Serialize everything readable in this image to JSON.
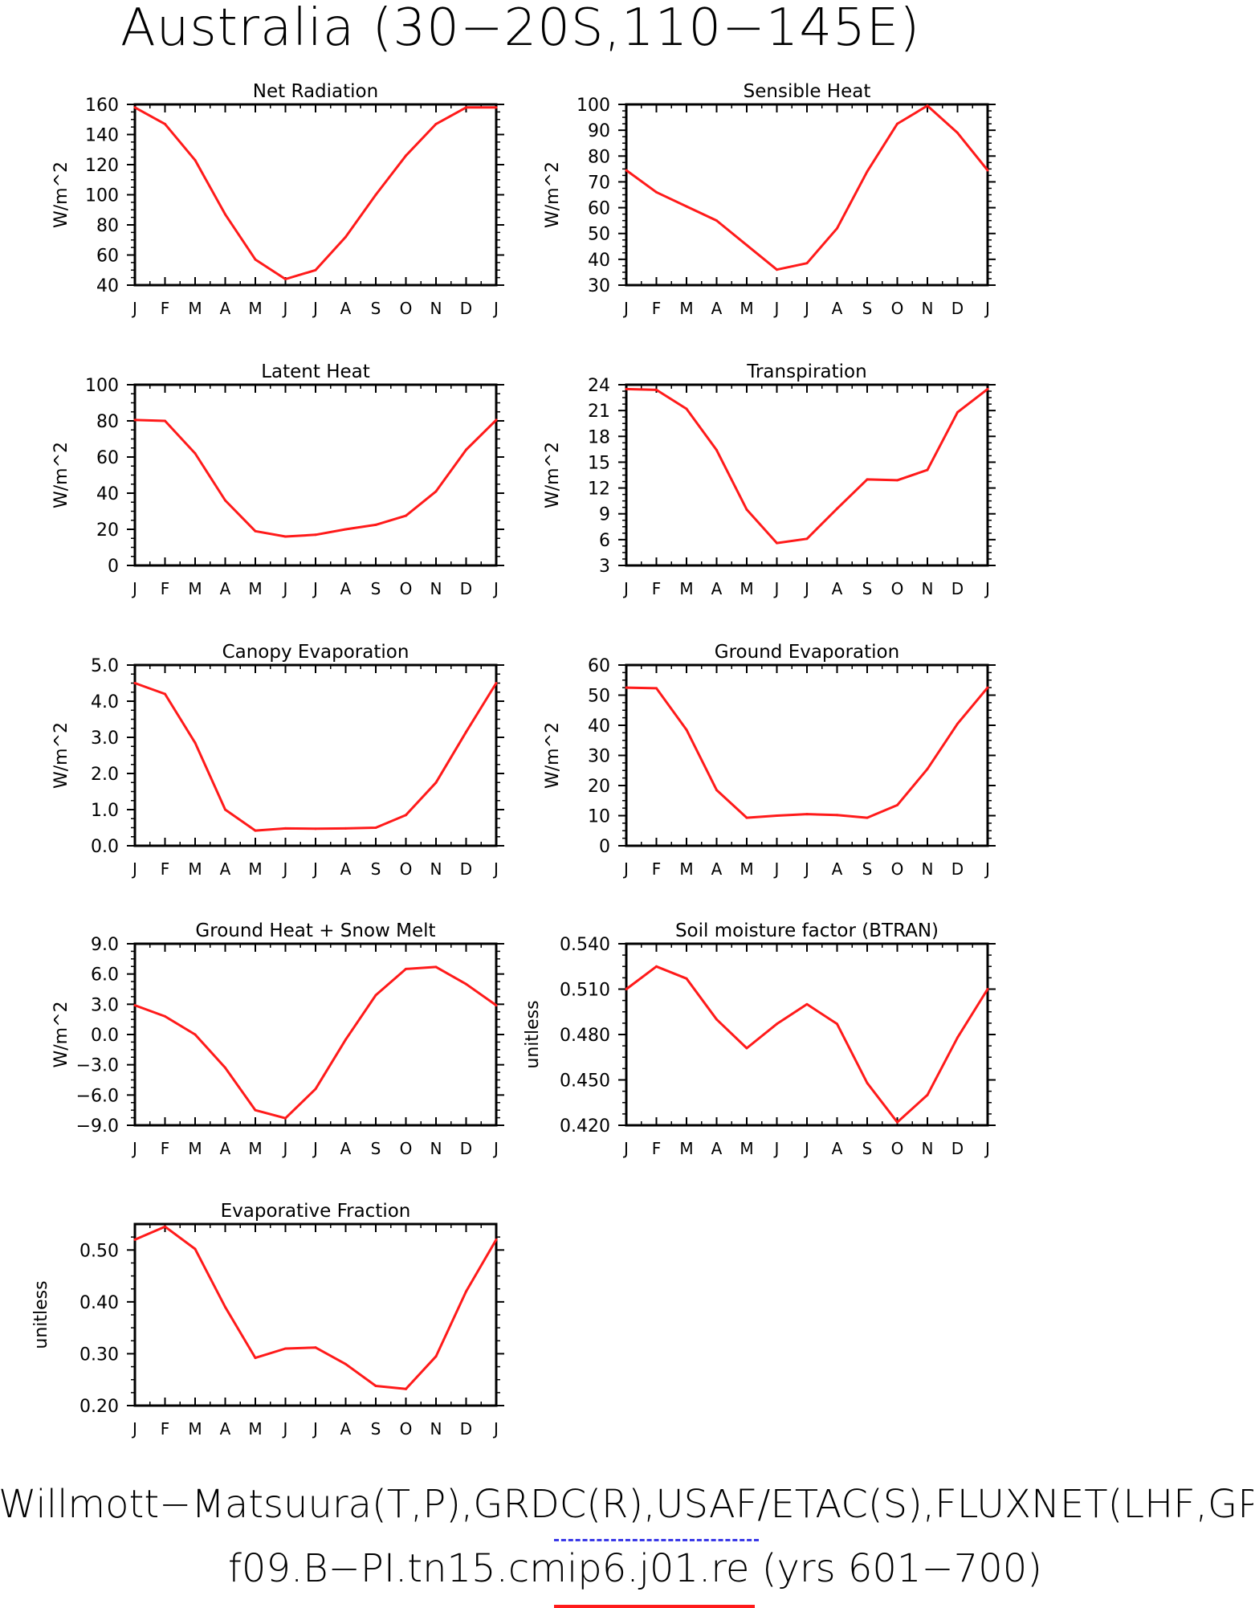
{
  "title": "Australia (30−20S,110−145E)",
  "footer": {
    "line1": "Willmott−Matsuura(T,P),GRDC(R),USAF/ETAC(S),FLUXNET(LHF,GPP)",
    "line2": "f09.B−PI.tn15.cmip6.j01.re (yrs 601−700)"
  },
  "colors": {
    "line": "#ff1a1a",
    "axis": "#000000",
    "dash": "#3a3ae8"
  },
  "chart_data": [
    {
      "type": "line",
      "title": "Net Radiation",
      "ylabel": "W/m^2",
      "categories": [
        "J",
        "F",
        "M",
        "A",
        "M",
        "J",
        "J",
        "A",
        "S",
        "O",
        "N",
        "D",
        "J"
      ],
      "ylim": [
        40,
        160
      ],
      "yticks": [
        "40",
        "60",
        "80",
        "100",
        "120",
        "140",
        "160"
      ],
      "values": [
        158,
        147,
        123,
        87,
        57,
        44,
        50,
        72,
        100,
        126,
        147,
        158,
        158
      ]
    },
    {
      "type": "line",
      "title": "Sensible Heat",
      "ylabel": "W/m^2",
      "categories": [
        "J",
        "F",
        "M",
        "A",
        "M",
        "J",
        "J",
        "A",
        "S",
        "O",
        "N",
        "D",
        "J"
      ],
      "ylim": [
        30,
        100
      ],
      "yticks": [
        "30",
        "40",
        "50",
        "60",
        "70",
        "80",
        "90",
        "100"
      ],
      "values": [
        74.5,
        66,
        60.5,
        55,
        45.5,
        36,
        38.5,
        52,
        74,
        92.5,
        99.5,
        89,
        74.5
      ]
    },
    {
      "type": "line",
      "title": "Latent Heat",
      "ylabel": "W/m^2",
      "categories": [
        "J",
        "F",
        "M",
        "A",
        "M",
        "J",
        "J",
        "A",
        "S",
        "O",
        "N",
        "D",
        "J"
      ],
      "ylim": [
        0,
        100
      ],
      "yticks": [
        "0",
        "20",
        "40",
        "60",
        "80",
        "100"
      ],
      "values": [
        80.5,
        80,
        62,
        36,
        19,
        16,
        17,
        20,
        22.5,
        27.5,
        41,
        64,
        80.5
      ]
    },
    {
      "type": "line",
      "title": "Transpiration",
      "ylabel": "W/m^2",
      "categories": [
        "J",
        "F",
        "M",
        "A",
        "M",
        "J",
        "J",
        "A",
        "S",
        "O",
        "N",
        "D",
        "J"
      ],
      "ylim": [
        3,
        24
      ],
      "yticks": [
        "3",
        "6",
        "9",
        "12",
        "15",
        "18",
        "21",
        "24"
      ],
      "values": [
        23.5,
        23.4,
        21.2,
        16.4,
        9.5,
        5.6,
        6.1,
        9.6,
        13,
        12.9,
        14.1,
        20.8,
        23.5
      ]
    },
    {
      "type": "line",
      "title": "Canopy Evaporation",
      "ylabel": "W/m^2",
      "categories": [
        "J",
        "F",
        "M",
        "A",
        "M",
        "J",
        "J",
        "A",
        "S",
        "O",
        "N",
        "D",
        "J"
      ],
      "ylim": [
        0,
        5
      ],
      "yticks": [
        "0.0",
        "1.0",
        "2.0",
        "3.0",
        "4.0",
        "5.0"
      ],
      "values": [
        4.5,
        4.2,
        2.85,
        1.0,
        0.42,
        0.48,
        0.47,
        0.48,
        0.5,
        0.85,
        1.75,
        3.15,
        4.5
      ]
    },
    {
      "type": "line",
      "title": "Ground Evaporation",
      "ylabel": "W/m^2",
      "categories": [
        "J",
        "F",
        "M",
        "A",
        "M",
        "J",
        "J",
        "A",
        "S",
        "O",
        "N",
        "D",
        "J"
      ],
      "ylim": [
        0,
        60
      ],
      "yticks": [
        "0",
        "10",
        "20",
        "30",
        "40",
        "50",
        "60"
      ],
      "values": [
        52.5,
        52.3,
        38.5,
        18.5,
        9.3,
        10,
        10.5,
        10.2,
        9.3,
        13.5,
        25.5,
        40.5,
        52.5
      ]
    },
    {
      "type": "line",
      "title": "Ground Heat + Snow Melt",
      "ylabel": "W/m^2",
      "categories": [
        "J",
        "F",
        "M",
        "A",
        "M",
        "J",
        "J",
        "A",
        "S",
        "O",
        "N",
        "D",
        "J"
      ],
      "ylim": [
        -9,
        9
      ],
      "yticks": [
        "-9.0",
        "-6.0",
        "-3.0",
        "0.0",
        "3.0",
        "6.0",
        "9.0"
      ],
      "values": [
        2.9,
        1.8,
        0,
        -3.3,
        -7.5,
        -8.3,
        -5.4,
        -0.5,
        3.9,
        6.5,
        6.7,
        5,
        2.9
      ]
    },
    {
      "type": "line",
      "title": "Soil moisture factor (BTRAN)",
      "ylabel": "unitless",
      "categories": [
        "J",
        "F",
        "M",
        "A",
        "M",
        "J",
        "J",
        "A",
        "S",
        "O",
        "N",
        "D",
        "J"
      ],
      "ylim": [
        0.42,
        0.54
      ],
      "yticks": [
        "0.420",
        "0.450",
        "0.480",
        "0.510",
        "0.540"
      ],
      "values": [
        0.51,
        0.525,
        0.517,
        0.49,
        0.471,
        0.487,
        0.5,
        0.487,
        0.448,
        0.422,
        0.44,
        0.478,
        0.51
      ]
    },
    {
      "type": "line",
      "title": "Evaporative Fraction",
      "ylabel": "unitless",
      "categories": [
        "J",
        "F",
        "M",
        "A",
        "M",
        "J",
        "J",
        "A",
        "S",
        "O",
        "N",
        "D",
        "J"
      ],
      "ylim": [
        0.2,
        0.55
      ],
      "yticks": [
        "0.20",
        "0.30",
        "0.40",
        "0.50"
      ],
      "values": [
        0.52,
        0.545,
        0.502,
        0.39,
        0.292,
        0.31,
        0.312,
        0.28,
        0.238,
        0.232,
        0.295,
        0.42,
        0.52
      ]
    }
  ]
}
